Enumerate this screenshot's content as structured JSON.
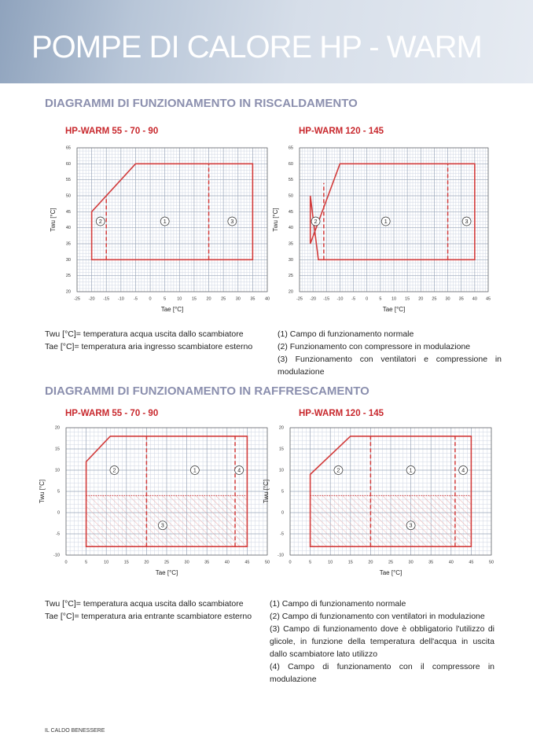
{
  "header": {
    "title": "POMPE DI CALORE HP - WARM"
  },
  "sections": [
    {
      "heading": "DIAGRAMMI DI FUNZIONAMENTO IN RISCALDAMENTO",
      "notes_left": [
        "Twu [°C]= temperatura acqua uscita dallo scambiatore",
        "Tae [°C]= temperatura aria ingresso scambiatore esterno"
      ],
      "notes_right": [
        "(1) Campo di funzionamento normale",
        "(2) Funzionamento con compressore in modulazione",
        "(3) Funzionamento con ventilatori e compressione in modulazione"
      ]
    },
    {
      "heading": "DIAGRAMMI DI FUNZIONAMENTO IN RAFFRESCAMENTO",
      "notes_left": [
        "Twu [°C]= temperatura acqua uscita dallo scambiatore",
        "Tae [°C]= temperatura aria entrante scambiatore esterno"
      ],
      "notes_right": [
        "(1) Campo di funzionamento normale",
        "(2) Campo di funzionamento con ventilatori in modulazione",
        "(3) Campo di funzionamento dove è obbligatorio l'utilizzo di glicole, in funzione della  temperatura  dell'acqua in uscita dallo scambiatore lato utilizzo",
        "(4) Campo di funzionamento con il compressore in modulazione"
      ]
    }
  ],
  "chart_data": [
    {
      "type": "envelope",
      "title": "HP-WARM 55 - 70 - 90",
      "xlabel": "Tae [°C]",
      "ylabel": "Twu [°C]",
      "xlim": [
        -25,
        40
      ],
      "xticks": [
        -25,
        -20,
        -15,
        -10,
        -5,
        0,
        5,
        10,
        15,
        20,
        25,
        30,
        35,
        40
      ],
      "ylim": [
        20,
        65
      ],
      "yticks": [
        20,
        25,
        30,
        35,
        40,
        45,
        50,
        55,
        60,
        65
      ],
      "grid": true,
      "color": "#d23c3c",
      "outline": {
        "x": [
          -20,
          -20,
          -5,
          35,
          35
        ],
        "y": [
          30,
          45,
          60,
          60,
          30
        ]
      },
      "dashed": [
        {
          "x": [
            -15,
            -15
          ],
          "y": [
            30,
            50
          ]
        },
        {
          "x": [
            20,
            20
          ],
          "y": [
            30,
            60
          ]
        }
      ],
      "regions": [
        {
          "label": "2",
          "x": -17,
          "y": 42
        },
        {
          "label": "1",
          "x": 5,
          "y": 42
        },
        {
          "label": "3",
          "x": 28,
          "y": 42
        }
      ]
    },
    {
      "type": "envelope",
      "title": "HP-WARM 120 - 145",
      "xlabel": "Tae [°C]",
      "ylabel": "Twu [°C]",
      "xlim": [
        -25,
        45
      ],
      "xticks": [
        -25,
        -20,
        -15,
        -10,
        -5,
        0,
        5,
        10,
        15,
        20,
        25,
        30,
        35,
        40,
        45
      ],
      "ylim": [
        20,
        65
      ],
      "yticks": [
        20,
        25,
        30,
        35,
        40,
        45,
        50,
        55,
        60,
        65
      ],
      "grid": true,
      "color": "#d23c3c",
      "outline": {
        "x": [
          -21,
          -21,
          -18,
          40,
          40,
          -10
        ],
        "y": [
          35,
          50,
          30,
          30,
          60,
          60
        ]
      },
      "dashed": [
        {
          "x": [
            -16,
            -16
          ],
          "y": [
            30,
            54
          ]
        },
        {
          "x": [
            30,
            30
          ],
          "y": [
            30,
            60
          ]
        }
      ],
      "regions": [
        {
          "label": "2",
          "x": -19,
          "y": 42
        },
        {
          "label": "1",
          "x": 7,
          "y": 42
        },
        {
          "label": "3",
          "x": 37,
          "y": 42
        }
      ]
    },
    {
      "type": "envelope",
      "title": "HP-WARM 55 - 70 - 90",
      "xlabel": "Tae [°C]",
      "ylabel": "Twu [°C]",
      "xlim": [
        0,
        50
      ],
      "xticks": [
        0,
        5,
        10,
        15,
        20,
        25,
        30,
        35,
        40,
        45,
        50
      ],
      "ylim": [
        -10,
        20
      ],
      "yticks": [
        -10,
        -5,
        0,
        5,
        10,
        15,
        20
      ],
      "grid": true,
      "color": "#d23c3c",
      "outline": {
        "x": [
          5,
          5,
          11,
          45,
          45
        ],
        "y": [
          -8,
          12,
          18,
          18,
          -8
        ]
      },
      "dashed": [
        {
          "x": [
            20,
            20
          ],
          "y": [
            -8,
            18
          ]
        },
        {
          "x": [
            42,
            42
          ],
          "y": [
            -8,
            18
          ]
        }
      ],
      "dotted": [
        {
          "x": [
            5,
            45
          ],
          "y": [
            4,
            4
          ]
        }
      ],
      "hatched": {
        "x": [
          5,
          5,
          45,
          45
        ],
        "y": [
          -8,
          4,
          4,
          -8
        ]
      },
      "regions": [
        {
          "label": "2",
          "x": 12,
          "y": 10
        },
        {
          "label": "1",
          "x": 32,
          "y": 10
        },
        {
          "label": "4",
          "x": 43,
          "y": 10
        },
        {
          "label": "3",
          "x": 24,
          "y": -3
        }
      ]
    },
    {
      "type": "envelope",
      "title": "HP-WARM 120 - 145",
      "xlabel": "Tae [°C]",
      "ylabel": "Twu [°C]",
      "xlim": [
        0,
        50
      ],
      "xticks": [
        0,
        5,
        10,
        15,
        20,
        25,
        30,
        35,
        40,
        45,
        50
      ],
      "ylim": [
        -10,
        20
      ],
      "yticks": [
        -10,
        -5,
        0,
        5,
        10,
        15,
        20
      ],
      "grid": true,
      "color": "#d23c3c",
      "outline": {
        "x": [
          5,
          5,
          15,
          45,
          45
        ],
        "y": [
          -8,
          9,
          18,
          18,
          -8
        ]
      },
      "dashed": [
        {
          "x": [
            20,
            20
          ],
          "y": [
            -8,
            18
          ]
        },
        {
          "x": [
            41,
            41
          ],
          "y": [
            -8,
            18
          ]
        }
      ],
      "dotted": [
        {
          "x": [
            5,
            45
          ],
          "y": [
            4,
            4
          ]
        }
      ],
      "hatched": {
        "x": [
          5,
          5,
          45,
          45
        ],
        "y": [
          -8,
          4,
          4,
          -8
        ]
      },
      "regions": [
        {
          "label": "2",
          "x": 12,
          "y": 10
        },
        {
          "label": "1",
          "x": 30,
          "y": 10
        },
        {
          "label": "4",
          "x": 43,
          "y": 10
        },
        {
          "label": "3",
          "x": 30,
          "y": -3
        }
      ]
    }
  ],
  "footer": "IL CALDO BENESSERE"
}
